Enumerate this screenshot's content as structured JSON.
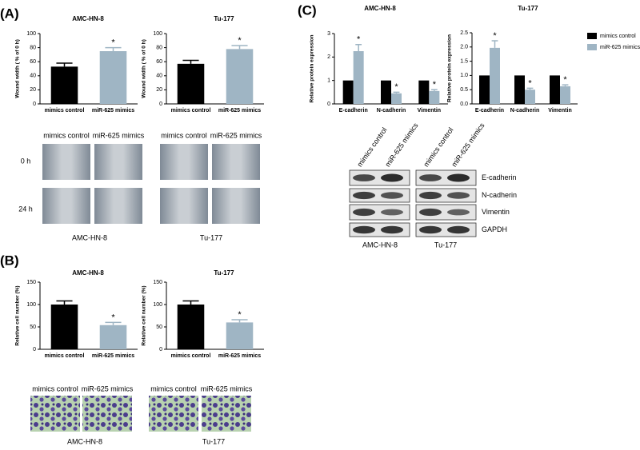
{
  "chart_data": [
    {
      "type": "bar",
      "title": "AMC-HN-8",
      "ylabel": "Wound width ( % of 0 h)",
      "categories": [
        "mimics control",
        "miR-625 mimics"
      ],
      "values": [
        53,
        75
      ],
      "errors": [
        5,
        5
      ],
      "annotations": [
        null,
        "*"
      ],
      "colors": [
        "#000000",
        "#9fb5c4"
      ],
      "ylim": [
        0,
        100
      ],
      "yticks": [
        0,
        20,
        40,
        60,
        80,
        100
      ]
    },
    {
      "type": "bar",
      "title": "Tu-177",
      "ylabel": "Wound width ( % of 0 h)",
      "categories": [
        "mimics control",
        "miR-625 mimics"
      ],
      "values": [
        57,
        78
      ],
      "errors": [
        5,
        5
      ],
      "annotations": [
        null,
        "*"
      ],
      "colors": [
        "#000000",
        "#9fb5c4"
      ],
      "ylim": [
        0,
        100
      ],
      "yticks": [
        0,
        20,
        40,
        60,
        80,
        100
      ]
    },
    {
      "type": "bar",
      "title": "AMC-HN-8",
      "ylabel": "Relative cell number (%)",
      "categories": [
        "mimics control",
        "miR-625 mimics"
      ],
      "values": [
        100,
        54
      ],
      "errors": [
        8,
        6
      ],
      "annotations": [
        null,
        "*"
      ],
      "colors": [
        "#000000",
        "#9fb5c4"
      ],
      "ylim": [
        0,
        150
      ],
      "yticks": [
        0,
        50,
        100,
        150
      ]
    },
    {
      "type": "bar",
      "title": "Tu-177",
      "ylabel": "Relative cell number (%)",
      "categories": [
        "mimics control",
        "miR-625 mimics"
      ],
      "values": [
        100,
        60
      ],
      "errors": [
        8,
        6
      ],
      "annotations": [
        null,
        "*"
      ],
      "colors": [
        "#000000",
        "#9fb5c4"
      ],
      "ylim": [
        0,
        150
      ],
      "yticks": [
        0,
        50,
        100,
        150
      ]
    },
    {
      "type": "bar",
      "title": "AMC-HN-8",
      "ylabel": "Relative protein expression",
      "categories": [
        "E-cadherin",
        "N-cadherin",
        "Vimentin"
      ],
      "series": [
        {
          "name": "mimics control",
          "color": "#000000",
          "values": [
            1,
            1,
            1
          ]
        },
        {
          "name": "miR-625 mimics",
          "color": "#9fb5c4",
          "values": [
            2.25,
            0.45,
            0.55
          ],
          "errors": [
            0.28,
            0.05,
            0.06
          ],
          "annotations": [
            "*",
            "*",
            "*"
          ]
        }
      ],
      "ylim": [
        0,
        3
      ],
      "yticks": [
        0,
        1,
        2,
        3
      ]
    },
    {
      "type": "bar",
      "title": "Tu-177",
      "ylabel": "Relative protein expression",
      "categories": [
        "E-cadherin",
        "N-cadherin",
        "Vimentin"
      ],
      "series": [
        {
          "name": "mimics control",
          "color": "#000000",
          "values": [
            1,
            1,
            1
          ]
        },
        {
          "name": "miR-625 mimics",
          "color": "#9fb5c4",
          "values": [
            1.97,
            0.5,
            0.62
          ],
          "errors": [
            0.25,
            0.05,
            0.05
          ],
          "annotations": [
            "*",
            "*",
            "*"
          ]
        }
      ],
      "ylim": [
        0,
        2.5
      ],
      "yticks": [
        {
          "value": 0,
          "label": "0.0"
        },
        {
          "value": 0.5,
          "label": "0.5"
        },
        {
          "value": 1,
          "label": "1.0"
        },
        {
          "value": 1.5,
          "label": "1.5"
        },
        {
          "value": 2,
          "label": "2.0"
        },
        {
          "value": 2.5,
          "label": "2.5"
        }
      ],
      "legend": "right"
    }
  ],
  "figure": {
    "panel_labels": [
      "(A)",
      "(B)",
      "(C)"
    ],
    "wound": {
      "columns": [
        "mimics control",
        "miR-625 mimics",
        "mimics control",
        "miR-625 mimics"
      ],
      "rows": [
        "0 h",
        "24 h"
      ],
      "cell_lines": [
        "AMC-HN-8",
        "Tu-177"
      ]
    },
    "transwell": {
      "columns": [
        "mimics control",
        "miR-625 mimics",
        "mimics control",
        "miR-625 mimics"
      ],
      "cell_lines": [
        "AMC-HN-8",
        "Tu-177"
      ]
    },
    "blot": {
      "columns": [
        "mimics control",
        "miR-625 mimics",
        "mimics control",
        "miR-625 mimics"
      ],
      "proteins": [
        "E-cadherin",
        "N-cadherin",
        "Vimentin",
        "GAPDH"
      ],
      "cell_lines": [
        "AMC-HN-8",
        "Tu-177"
      ]
    }
  }
}
